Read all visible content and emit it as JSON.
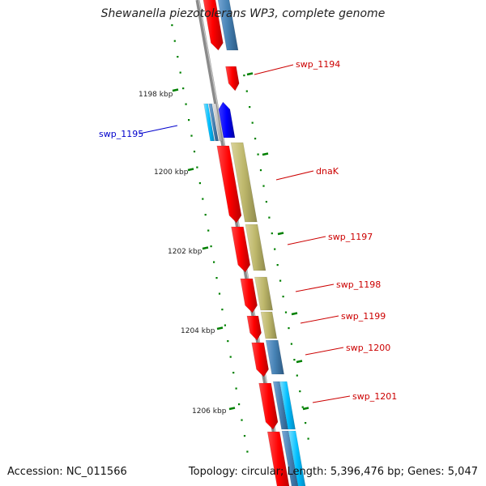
{
  "title": "Shewanella piezotolerans WP3, complete genome",
  "accession": "Accession: NC_011566",
  "summary": "Topology: circular; Length: 5,396,476 bp; Genes: 5,047",
  "scale_labels": [
    "1198 kbp",
    "1200 kbp",
    "1202 kbp",
    "1204 kbp",
    "1206 kbp"
  ],
  "gene_labels": [
    {
      "text": "swp_1194",
      "color": "#cc0000"
    },
    {
      "text": "swp_1195",
      "color": "#0000cc"
    },
    {
      "text": "dnaK",
      "color": "#cc0000"
    },
    {
      "text": "swp_1197",
      "color": "#cc0000"
    },
    {
      "text": "swp_1198",
      "color": "#cc0000"
    },
    {
      "text": "swp_1199",
      "color": "#cc0000"
    },
    {
      "text": "swp_1200",
      "color": "#cc0000"
    },
    {
      "text": "swp_1201",
      "color": "#cc0000"
    }
  ],
  "colors": {
    "backbone": "#8a8a8a",
    "cds": "#ff0000",
    "cds_reverse": "#0000ff",
    "tick": "#008000",
    "feature_khaki": "#bdb76b",
    "feature_steelblue": "#4682b4",
    "feature_cyan": "#00bfff"
  }
}
